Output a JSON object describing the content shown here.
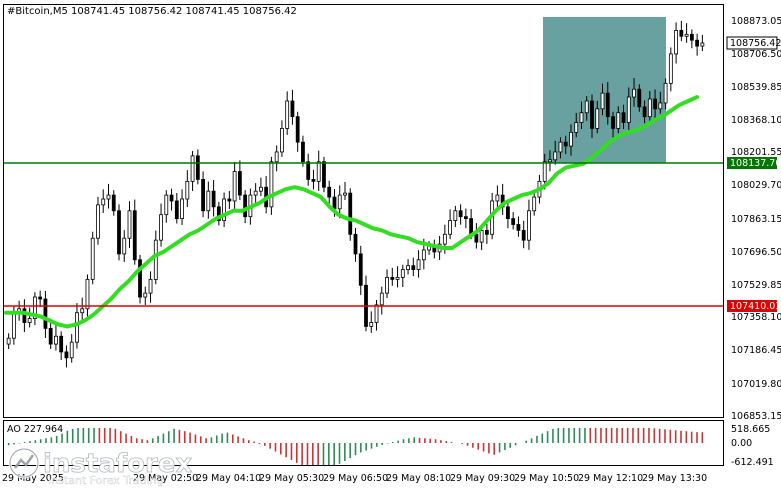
{
  "window": {
    "title": "#Bitcoin,M5  108741.45 108756.42 108741.45 108756.42"
  },
  "price_axis": {
    "ticks": [
      "108873.05",
      "108706.50",
      "108539.85",
      "108368.10",
      "108201.55",
      "108029.70",
      "107863.15",
      "107696.50",
      "107529.85",
      "107358.10",
      "107186.45",
      "107019.80",
      "106853.15"
    ]
  },
  "price_tags": {
    "current": "108756.42",
    "green_level": "108137.70",
    "red_level": "107410.03"
  },
  "ao": {
    "label": "AO 227.964",
    "ticks": [
      "518.665",
      "0.00",
      "-612.491"
    ]
  },
  "time_axis": {
    "labels": [
      "29 May 2025",
      "29 May 02:50",
      "29 May 04:10",
      "29 May 05:30",
      "29 May 06:50",
      "29 May 08:10",
      "29 May 09:30",
      "29 May 10:50",
      "29 May 12:10",
      "29 May 13:30"
    ]
  },
  "watermark": {
    "brand": "instaforex",
    "tagline": "Instant Forex Trading"
  },
  "colors": {
    "candle": "#000000",
    "ma": "#33dd22",
    "green_line": "#007700",
    "red_line": "#dd0000",
    "highlight": "#4f8f8f",
    "ao_up": "#2e8b57",
    "ao_down": "#cc3333"
  },
  "chart_data": {
    "type": "candlestick",
    "title": "#Bitcoin,M5",
    "ohlc_last": {
      "open": 108741.45,
      "high": 108756.42,
      "low": 108741.45,
      "close": 108756.42
    },
    "horizontal_levels": [
      {
        "value": 108137.7,
        "color": "green"
      },
      {
        "value": 107410.03,
        "color": "red"
      }
    ],
    "ylim": [
      106853.15,
      108873.05
    ],
    "closes": [
      107250,
      107380,
      107400,
      107330,
      107350,
      107460,
      107450,
      107300,
      107220,
      107260,
      107180,
      107150,
      107230,
      107380,
      107400,
      107550,
      107760,
      107930,
      107960,
      107980,
      107900,
      107680,
      107760,
      107900,
      107650,
      107460,
      107480,
      107550,
      107750,
      107880,
      107980,
      107950,
      107860,
      107960,
      108050,
      108180,
      108060,
      107900,
      108000,
      107920,
      107850,
      107960,
      107950,
      108100,
      107980,
      107870,
      107980,
      108000,
      108020,
      107920,
      108150,
      108200,
      108320,
      108460,
      108380,
      108250,
      108150,
      108060,
      108050,
      108150,
      108020,
      107970,
      107910,
      107980,
      107990,
      107780,
      107680,
      107520,
      107310,
      107330,
      107420,
      107480,
      107560,
      107550,
      107560,
      107600,
      107620,
      107600,
      107650,
      107700,
      107720,
      107690,
      107730,
      107780,
      107850,
      107900,
      107870,
      107860,
      107780,
      107740,
      107800,
      107780,
      107950,
      107980,
      107920,
      107860,
      107830,
      107800,
      107750,
      107900,
      107970,
      108050,
      108150,
      108160,
      108200,
      108250,
      108230,
      108300,
      108350,
      108400,
      108460,
      108320,
      108420,
      108500,
      108380,
      108320,
      108400,
      108350,
      108480,
      108520,
      108430,
      108380,
      108470,
      108420,
      108450,
      108550,
      108700,
      108820,
      108790,
      108800,
      108770,
      108740,
      108756
    ],
    "ma_values": [
      107380,
      107380,
      107380,
      107370,
      107360,
      107340,
      107320,
      107310,
      107320,
      107340,
      107370,
      107410,
      107450,
      107500,
      107540,
      107590,
      107630,
      107670,
      107690,
      107720,
      107750,
      107780,
      107800,
      107830,
      107860,
      107880,
      107900,
      107900,
      107920,
      107940,
      107970,
      107990,
      108010,
      108020,
      108010,
      107990,
      107970,
      107920,
      107880,
      107860,
      107850,
      107830,
      107810,
      107800,
      107780,
      107770,
      107760,
      107740,
      107730,
      107720,
      107710,
      107710,
      107740,
      107770,
      107800,
      107850,
      107900,
      107940,
      107960,
      107980,
      107990,
      108010,
      108040,
      108090,
      108120,
      108130,
      108140,
      108170,
      108210,
      108250,
      108280,
      108300,
      108310,
      108330,
      108360,
      108380,
      108410,
      108440,
      108460,
      108480
    ],
    "ao_values": [
      -50,
      -30,
      -10,
      20,
      40,
      60,
      80,
      100,
      120,
      150,
      200,
      260,
      300,
      340,
      380,
      420,
      460,
      440,
      400,
      350,
      300,
      250,
      200,
      150,
      100,
      80,
      60,
      100,
      150,
      200,
      250,
      300,
      280,
      250,
      220,
      180,
      140,
      100,
      120,
      160,
      200,
      220,
      180,
      140,
      100,
      60,
      30,
      -20,
      -60,
      -120,
      -180,
      -240,
      -300,
      -360,
      -420,
      -480,
      -520,
      -560,
      -600,
      -580,
      -540,
      -500,
      -440,
      -380,
      -320,
      -260,
      -200,
      -160,
      -120,
      -80,
      -40,
      -10,
      20,
      50,
      80,
      100,
      120,
      110,
      100,
      90,
      80,
      60,
      40,
      20,
      0,
      -20,
      -60,
      -100,
      -140,
      -180,
      -220,
      -250,
      -200,
      -150,
      -100,
      -50,
      0,
      50,
      100,
      150,
      200,
      250,
      300,
      330,
      360,
      380,
      400,
      420,
      440,
      430,
      420,
      410,
      400,
      390,
      380,
      370,
      360,
      350,
      340,
      330,
      320,
      310,
      300,
      290,
      280,
      270,
      260,
      250,
      240,
      230,
      227.964
    ]
  }
}
